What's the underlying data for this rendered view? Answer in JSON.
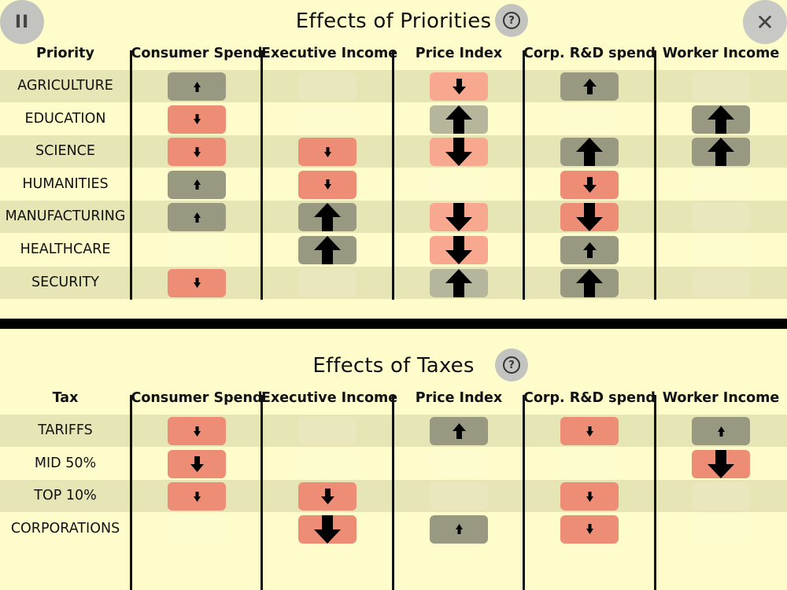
{
  "colors": {
    "background": "#fdfcca",
    "stripe": "#e6e5b6",
    "increase_cell": "#999982",
    "decrease_cell": "#ed8d75",
    "arrow": "#000000"
  },
  "controls": {
    "pause_icon": "pause-icon",
    "pause_label": "II",
    "close_icon": "close-icon",
    "close_label": "✕",
    "help_label": "?"
  },
  "columns": [
    "Consumer Spend",
    "Executive Income",
    "Price Index",
    "Corp. R&D spend",
    "Worker Income"
  ],
  "priorities": {
    "title": "Effects of Priorities",
    "row_header": "Priority",
    "rows": [
      {
        "label": "AGRICULTURE",
        "effects": [
          1,
          0,
          -2,
          2,
          0
        ]
      },
      {
        "label": "EDUCATION",
        "effects": [
          -1,
          0,
          3,
          0,
          3
        ]
      },
      {
        "label": "SCIENCE",
        "effects": [
          -1,
          -1,
          -3,
          3,
          3
        ]
      },
      {
        "label": "HUMANITIES",
        "effects": [
          1,
          -1,
          0,
          -2,
          0
        ]
      },
      {
        "label": "MANUFACTURING",
        "effects": [
          1,
          3,
          -3,
          -3,
          0
        ]
      },
      {
        "label": "HEALTHCARE",
        "effects": [
          0,
          3,
          -3,
          2,
          0
        ]
      },
      {
        "label": "SECURITY",
        "effects": [
          -1,
          0,
          3,
          3,
          0
        ]
      }
    ]
  },
  "taxes": {
    "title": "Effects of Taxes",
    "row_header": "Tax",
    "rows": [
      {
        "label": "TARIFFS",
        "effects": [
          -1,
          0,
          2,
          -1,
          1
        ]
      },
      {
        "label": "MID 50%",
        "effects": [
          -2,
          0,
          0,
          0,
          -3
        ]
      },
      {
        "label": "TOP 10%",
        "effects": [
          -1,
          -2,
          0,
          -1,
          0
        ]
      },
      {
        "label": "CORPORATIONS",
        "effects": [
          0,
          -3,
          1,
          -1,
          0
        ]
      }
    ]
  }
}
